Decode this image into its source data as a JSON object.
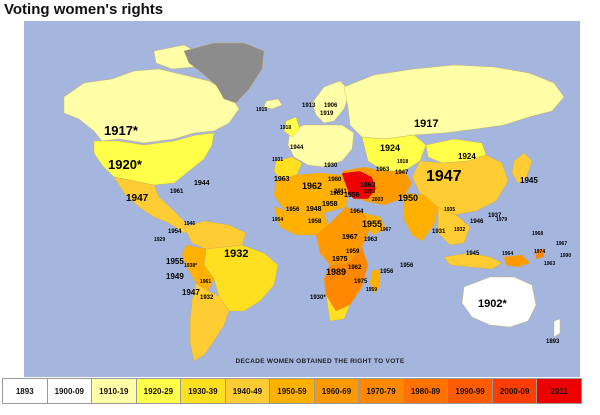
{
  "title": "Voting women's rights",
  "legend_caption": "DECADE WOMEN OBTAINED THE RIGHT TO VOTE",
  "colors": {
    "ocean": "#a5b6de",
    "no_data": "#8c8c8c",
    "1893": "#ffffff",
    "1900-09": "#ffffff",
    "1910-19": "#ffffa8",
    "1920-29": "#ffff4a",
    "1930-39": "#ffe020",
    "1940-49": "#ffcc33",
    "1950-59": "#ffb000",
    "1960-69": "#ff9900",
    "1970-79": "#ff8800",
    "1980-89": "#ff7200",
    "1990-99": "#ff5c00",
    "2000-09": "#ff3d00",
    "2011": "#ee0000"
  },
  "legend": [
    {
      "label": "1893",
      "color": "#ffffff"
    },
    {
      "label": "1900-09",
      "color": "#ffffff"
    },
    {
      "label": "1910-19",
      "color": "#ffffa8"
    },
    {
      "label": "1920-29",
      "color": "#ffff4a"
    },
    {
      "label": "1930-39",
      "color": "#ffe020"
    },
    {
      "label": "1940-49",
      "color": "#ffcc33"
    },
    {
      "label": "1950-59",
      "color": "#ffb000"
    },
    {
      "label": "1960-69",
      "color": "#ff9900"
    },
    {
      "label": "1970-79",
      "color": "#ff8800"
    },
    {
      "label": "1980-89",
      "color": "#ff7200"
    },
    {
      "label": "1990-99",
      "color": "#ff5c00"
    },
    {
      "label": "2000-09",
      "color": "#ff3d00"
    },
    {
      "label": "2011",
      "color": "#ee0000"
    }
  ],
  "map_labels": {
    "canada": "1917*",
    "usa": "1920*",
    "greenland_iceland": "1915",
    "mexico": "1947",
    "cuba": "1961",
    "atlantic": "1944",
    "brazil": "1932",
    "peru": "1955",
    "argentina": "1947",
    "chile": "1949",
    "uruguay": "1932",
    "bolivia": "1938*",
    "colombia": "1954",
    "venezuela": "1946",
    "ecuador": "1929",
    "paraguay": "1961",
    "russia": "1917",
    "kazakhstan": "1924",
    "mongolia": "1924",
    "china": "1947",
    "japan": "1945",
    "india": "1950",
    "iran": "1963",
    "saudi": "2011",
    "egypt": "1956",
    "libya": "1963",
    "algeria": "1962",
    "morocco": "1963",
    "sudan": "1964",
    "nigeria": "1958",
    "drc": "1967",
    "ethiopia": "1955",
    "kenya": "1963",
    "tanzania": "1959",
    "angola": "1975",
    "namibia": "1989",
    "south_africa": "1930*",
    "madagascar": "1959",
    "mozambique": "1975",
    "zambia": "1962",
    "australia": "1902*",
    "new_zealand": "1893",
    "indonesia": "1945",
    "philippines": "1937",
    "thailand": "1932",
    "vietnam": "1946",
    "pacific": "1979",
    "pacific2": "1968",
    "pacific3": "1967",
    "pacific4": "1990",
    "pacific5": "1974",
    "norway": "1913",
    "sweden": "1919",
    "finland": "1906",
    "uk": "1918",
    "europe": "1944",
    "spain": "1931",
    "turkey": "1930",
    "iraq": "1980",
    "pakistan": "1947",
    "kyrgyz": "1918",
    "mali": "1956",
    "ghana": "1954",
    "indian_ocean": "1956",
    "sri_lanka": "1931",
    "burma": "1935",
    "png": "1964",
    "fiji": "1963",
    "kuwait": "2005",
    "oman": "2003",
    "afghan": "1963",
    "mauritius": "1956",
    "chad": "1958",
    "niger": "1948",
    "somalia": "1967"
  }
}
